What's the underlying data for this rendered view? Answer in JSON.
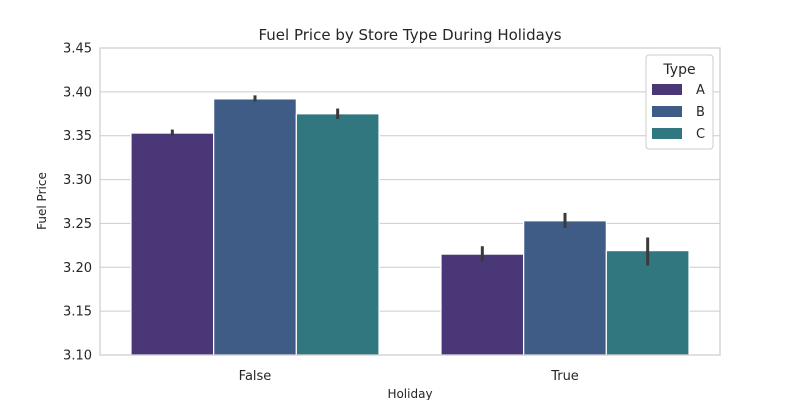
{
  "chart_data": {
    "type": "bar",
    "title": "Fuel Price by Store Type During Holidays",
    "xlabel": "Holiday",
    "ylabel": "Fuel Price",
    "categories": [
      "False",
      "True"
    ],
    "ylim": [
      3.1,
      3.45
    ],
    "yticks": [
      "3.10",
      "3.15",
      "3.20",
      "3.25",
      "3.30",
      "3.35",
      "3.40",
      "3.45"
    ],
    "grid": true,
    "legend": {
      "title": "Type",
      "placement": "top-right"
    },
    "series": [
      {
        "name": "A",
        "color": "#4a3778",
        "values": [
          3.353,
          3.215
        ],
        "err_low": [
          3.35,
          3.207
        ],
        "err_high": [
          3.357,
          3.224
        ]
      },
      {
        "name": "B",
        "color": "#3e5c86",
        "values": [
          3.392,
          3.253
        ],
        "err_low": [
          3.389,
          3.245
        ],
        "err_high": [
          3.396,
          3.262
        ]
      },
      {
        "name": "C",
        "color": "#31777f",
        "values": [
          3.375,
          3.219
        ],
        "err_low": [
          3.369,
          3.202
        ],
        "err_high": [
          3.381,
          3.234
        ]
      }
    ]
  }
}
